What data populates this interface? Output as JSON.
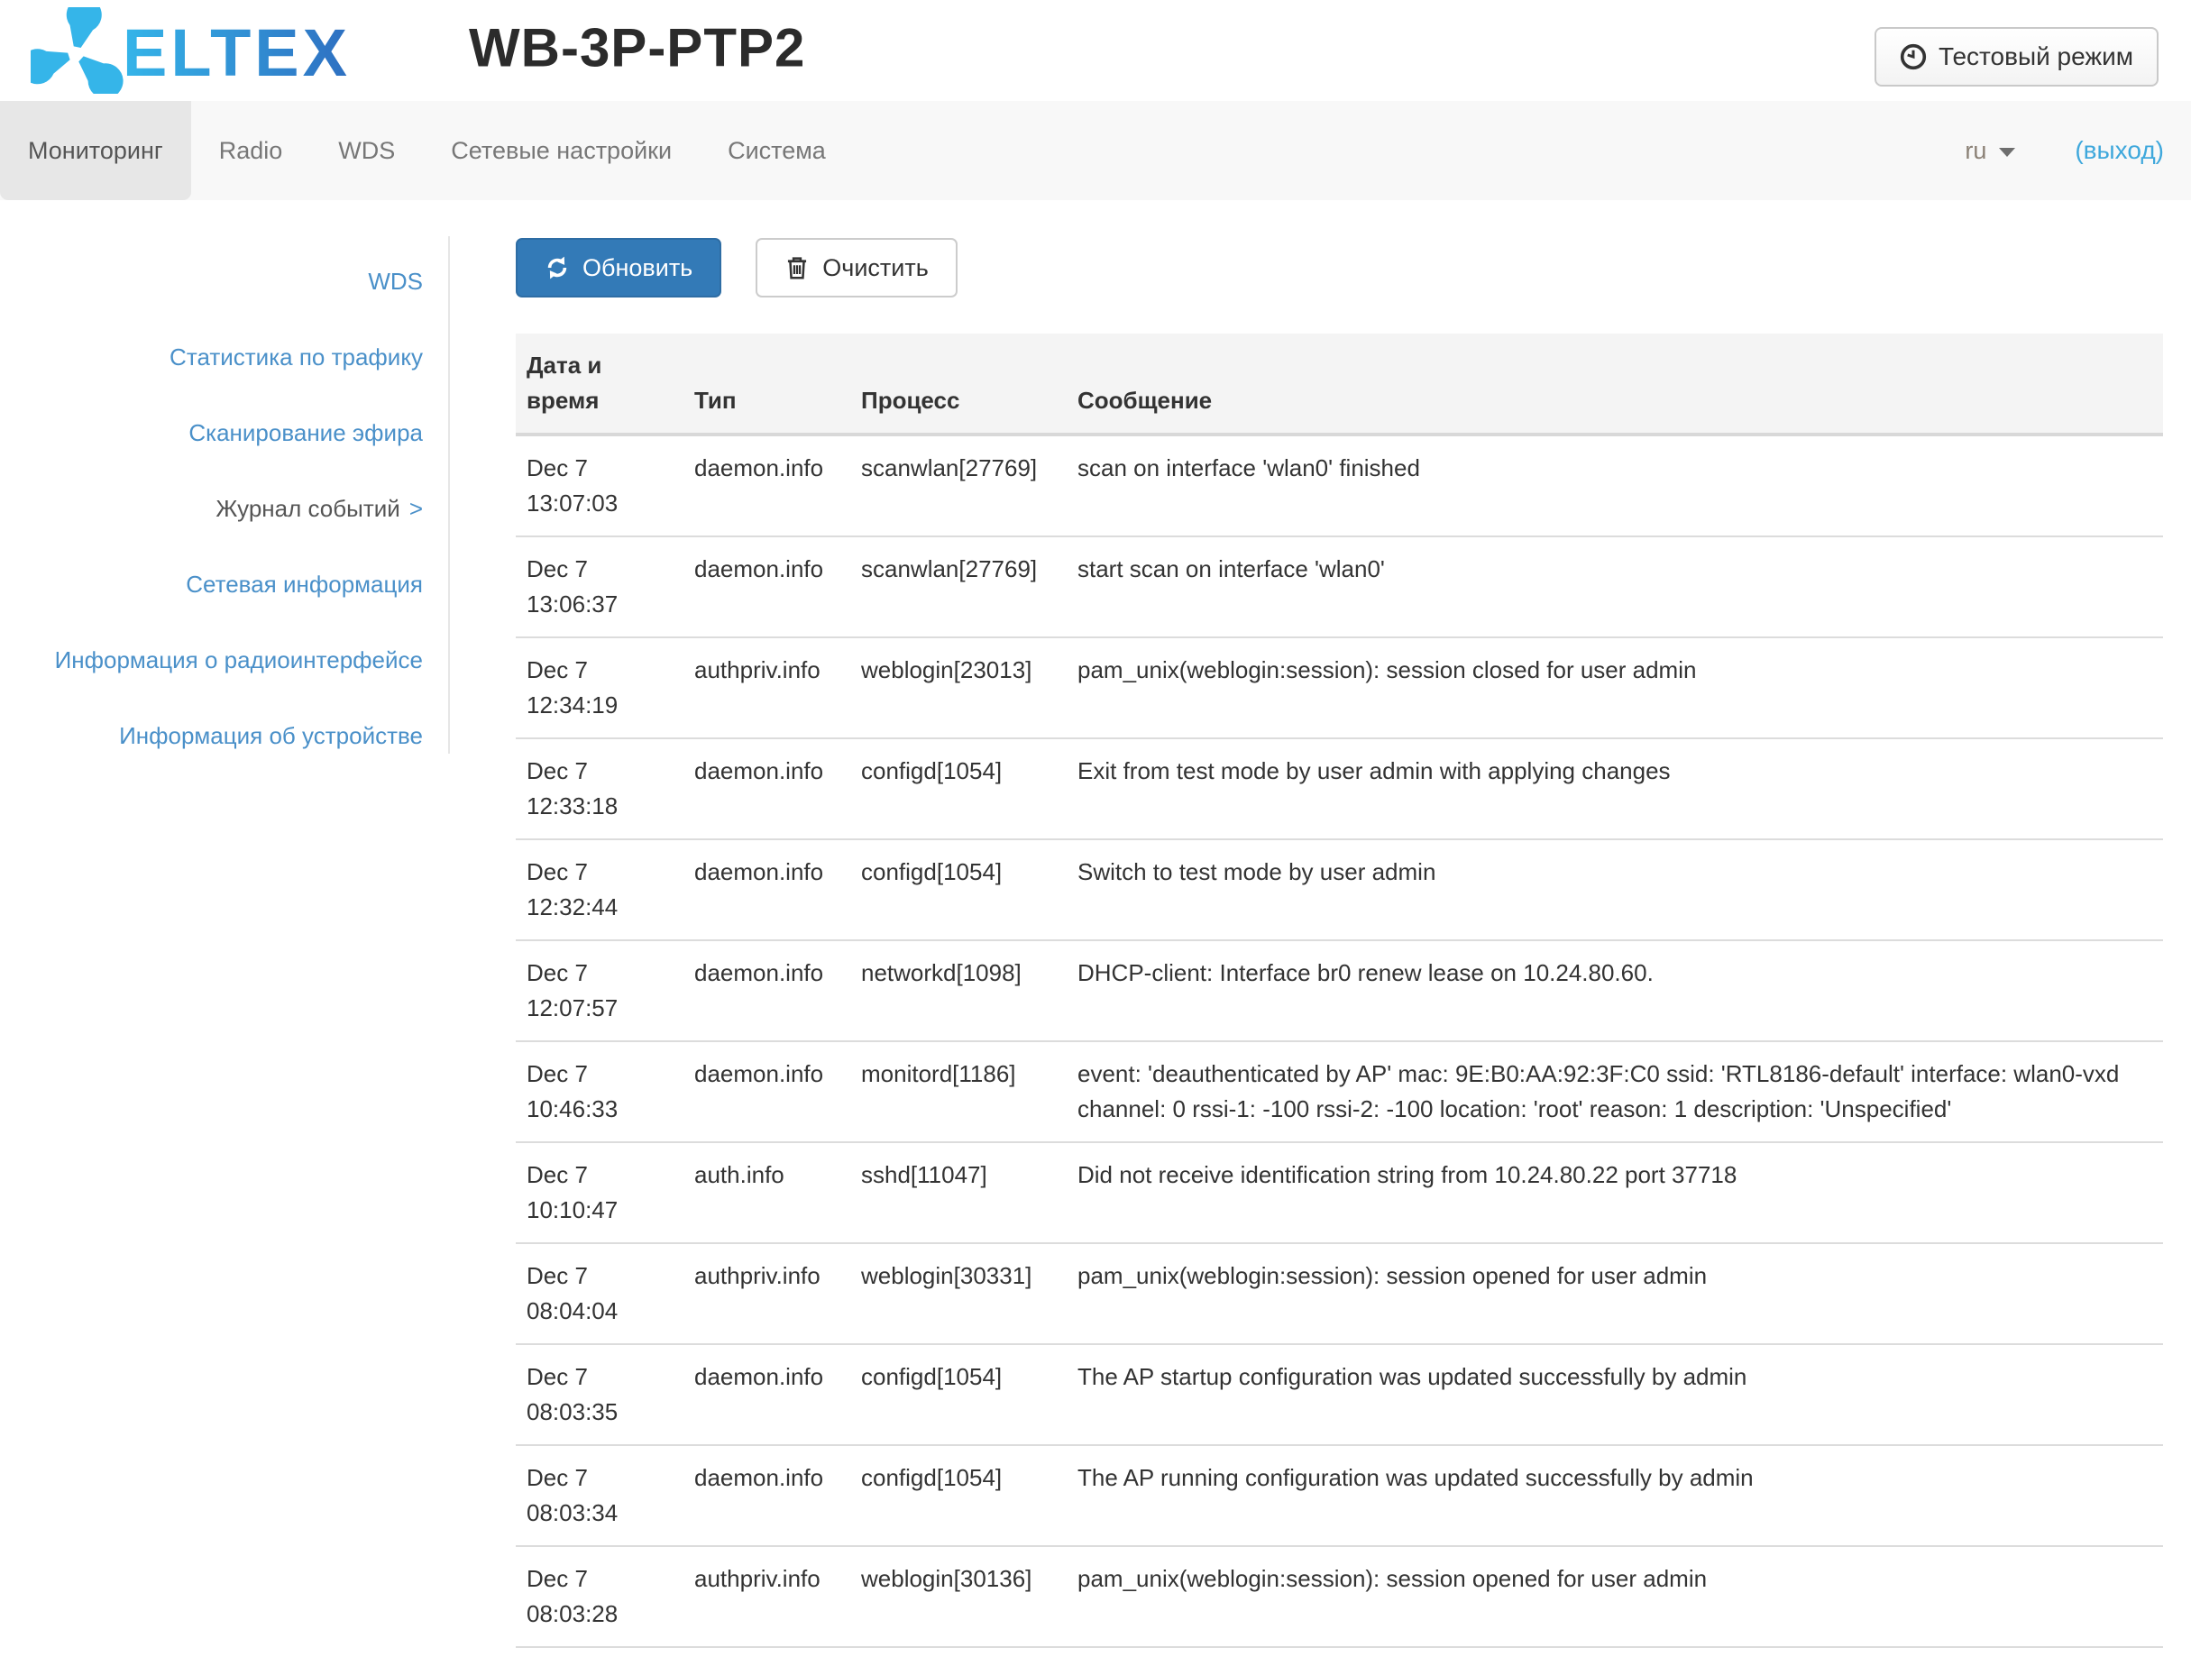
{
  "header": {
    "brand": "ELTEX",
    "title": "WB-3P-PTP2",
    "test_mode_label": "Тестовый режим"
  },
  "nav": {
    "items": [
      {
        "label": "Мониторинг",
        "active": true
      },
      {
        "label": "Radio",
        "active": false
      },
      {
        "label": "WDS",
        "active": false
      },
      {
        "label": "Сетевые настройки",
        "active": false
      },
      {
        "label": "Система",
        "active": false
      }
    ],
    "language": "ru",
    "logout_label": "(выход)"
  },
  "sidebar": {
    "chevron": ">",
    "items": [
      {
        "label": "WDS",
        "active": false
      },
      {
        "label": "Статистика по трафику",
        "active": false
      },
      {
        "label": "Сканирование эфира",
        "active": false
      },
      {
        "label": "Журнал событий",
        "active": true
      },
      {
        "label": "Сетевая информация",
        "active": false
      },
      {
        "label": "Информация о радиоинтерфейсе",
        "active": false
      },
      {
        "label": "Информация об устройстве",
        "active": false
      }
    ]
  },
  "toolbar": {
    "refresh_label": "Обновить",
    "clear_label": "Очистить"
  },
  "table": {
    "columns": [
      "Дата и время",
      "Тип",
      "Процесс",
      "Сообщение"
    ],
    "rows": [
      {
        "date": "Dec 7",
        "time": "13:07:03",
        "type": "daemon.info",
        "process": "scanwlan[27769]",
        "message": "scan on interface 'wlan0' finished"
      },
      {
        "date": "Dec 7",
        "time": "13:06:37",
        "type": "daemon.info",
        "process": "scanwlan[27769]",
        "message": "start scan on interface 'wlan0'"
      },
      {
        "date": "Dec 7",
        "time": "12:34:19",
        "type": "authpriv.info",
        "process": "weblogin[23013]",
        "message": "pam_unix(weblogin:session): session closed for user admin"
      },
      {
        "date": "Dec 7",
        "time": "12:33:18",
        "type": "daemon.info",
        "process": "configd[1054]",
        "message": "Exit from test mode by user admin with applying changes"
      },
      {
        "date": "Dec 7",
        "time": "12:32:44",
        "type": "daemon.info",
        "process": "configd[1054]",
        "message": "Switch to test mode by user admin"
      },
      {
        "date": "Dec 7",
        "time": "12:07:57",
        "type": "daemon.info",
        "process": "networkd[1098]",
        "message": "DHCP-client: Interface br0 renew lease on 10.24.80.60."
      },
      {
        "date": "Dec 7",
        "time": "10:46:33",
        "type": "daemon.info",
        "process": "monitord[1186]",
        "message": "event: 'deauthenticated by AP' mac: 9E:B0:AA:92:3F:C0 ssid: 'RTL8186-default' interface: wlan0-vxd channel: 0 rssi-1: -100 rssi-2: -100 location: 'root' reason: 1 description: 'Unspecified'"
      },
      {
        "date": "Dec 7",
        "time": "10:10:47",
        "type": "auth.info",
        "process": "sshd[11047]",
        "message": "Did not receive identification string from 10.24.80.22 port 37718"
      },
      {
        "date": "Dec 7",
        "time": "08:04:04",
        "type": "authpriv.info",
        "process": "weblogin[30331]",
        "message": "pam_unix(weblogin:session): session opened for user admin"
      },
      {
        "date": "Dec 7",
        "time": "08:03:35",
        "type": "daemon.info",
        "process": "configd[1054]",
        "message": "The AP startup configuration was updated successfully by admin"
      },
      {
        "date": "Dec 7",
        "time": "08:03:34",
        "type": "daemon.info",
        "process": "configd[1054]",
        "message": "The AP running configuration was updated successfully by admin"
      },
      {
        "date": "Dec 7",
        "time": "08:03:28",
        "type": "authpriv.info",
        "process": "weblogin[30136]",
        "message": "pam_unix(weblogin:session): session opened for user admin"
      }
    ]
  },
  "colors": {
    "primary_button": "#337ab7",
    "primary_button_border": "#2e6da4",
    "sidebar_link": "#4a90c9",
    "logout_link": "#3fa8dc",
    "navbar_bg": "#f8f8f8",
    "navbar_active_bg": "#e7e7e7",
    "table_header_bg": "#f4f4f4",
    "row_border": "#dcdcdc",
    "logo_light_blue": "#35b5e9",
    "logo_dark_blue": "#2e6fc1"
  }
}
